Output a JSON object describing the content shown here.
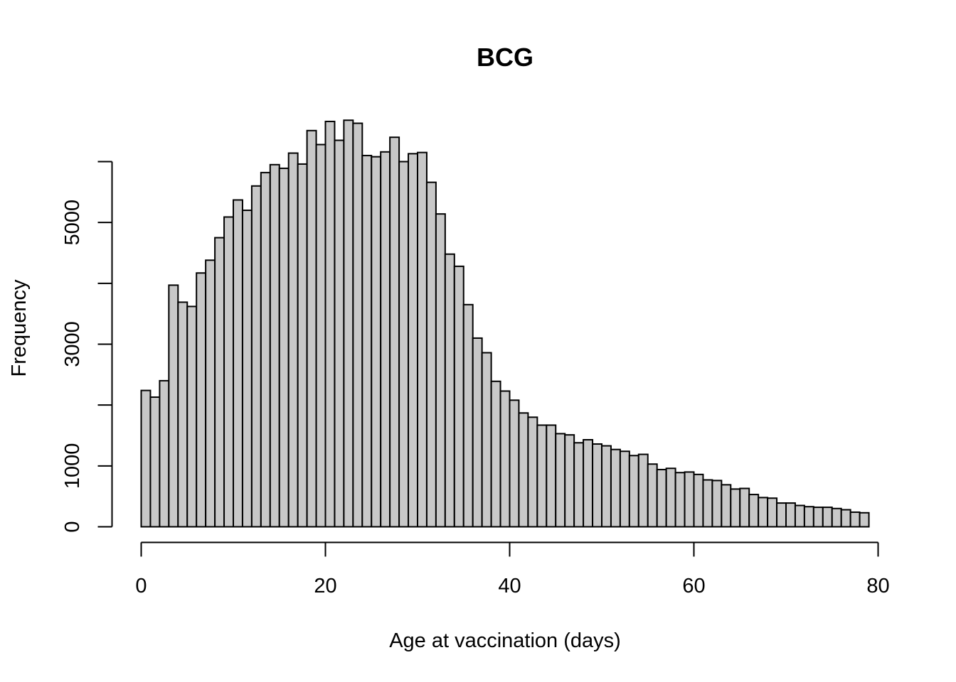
{
  "chart_data": {
    "type": "bar",
    "title": "BCG",
    "xlabel": "Age at vaccination (days)",
    "ylabel": "Frequency",
    "bin_width": 1,
    "x_start": 0,
    "xlim": [
      0,
      80
    ],
    "ylim": [
      0,
      6000
    ],
    "x_ticks": [
      0,
      20,
      40,
      60,
      80
    ],
    "y_ticks": [
      0,
      1000,
      2000,
      3000,
      4000,
      5000,
      6000
    ],
    "y_tick_labels": [
      "0",
      "1000",
      "",
      "3000",
      "",
      "5000",
      ""
    ],
    "bar_color": "#c8c8c8",
    "values": [
      2240,
      2130,
      2400,
      3970,
      3690,
      3620,
      4170,
      4380,
      4750,
      5090,
      5370,
      5200,
      5600,
      5820,
      5950,
      5890,
      6140,
      5960,
      6510,
      6280,
      6660,
      6350,
      6680,
      6630,
      6100,
      6080,
      6160,
      6400,
      6000,
      6130,
      6150,
      5660,
      5140,
      4480,
      4280,
      3650,
      3100,
      2860,
      2390,
      2230,
      2080,
      1870,
      1800,
      1670,
      1670,
      1530,
      1510,
      1380,
      1430,
      1360,
      1330,
      1270,
      1240,
      1170,
      1190,
      1030,
      940,
      960,
      890,
      900,
      860,
      770,
      760,
      690,
      620,
      630,
      530,
      480,
      470,
      390,
      390,
      350,
      330,
      320,
      320,
      300,
      280,
      240,
      230
    ]
  },
  "icons": {
    "chart": "histogram-icon"
  }
}
